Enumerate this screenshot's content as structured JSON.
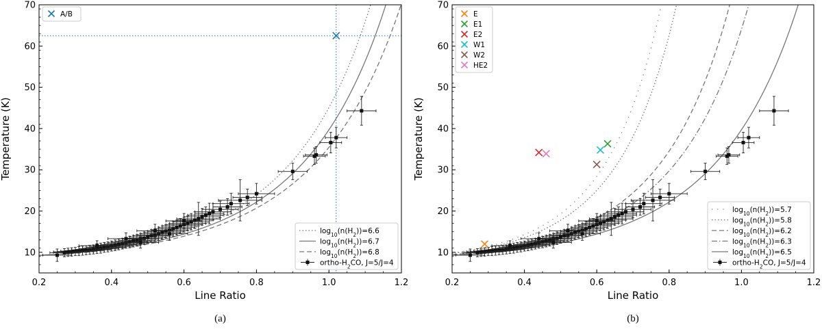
{
  "chart_data": [
    {
      "type": "scatter",
      "panel_label": "(a)",
      "xlabel": "Line Ratio",
      "ylabel": "Temperature (K)",
      "xlim": [
        0.2,
        1.2
      ],
      "ylim": [
        5,
        70
      ],
      "xticks": [
        0.2,
        0.4,
        0.6,
        0.8,
        1.0,
        1.2
      ],
      "yticks": [
        10,
        20,
        30,
        40,
        50,
        60,
        70
      ],
      "xtick_labels": [
        "0.2",
        "0.4",
        "0.6",
        "0.8",
        "1.0",
        "1.2"
      ],
      "ytick_labels": [
        "10",
        "20",
        "30",
        "40",
        "50",
        "60",
        "70"
      ],
      "grid": false,
      "model_curves": [
        {
          "name": "log10(n(H2))=6.6",
          "label_pre": "log",
          "label_sub": "10",
          "label_mid": "(n(H",
          "label_sub2": "2",
          "label_post": "))=6.6",
          "style": "dotted",
          "color": "#777777",
          "scale": 1.06
        },
        {
          "name": "log10(n(H2))=6.7",
          "label_pre": "log",
          "label_sub": "10",
          "label_mid": "(n(H",
          "label_sub2": "2",
          "label_post": "))=6.7",
          "style": "solid",
          "color": "#777777",
          "scale": 1.1
        },
        {
          "name": "log10(n(H2))=6.8",
          "label_pre": "log",
          "label_sub": "10",
          "label_mid": "(n(H",
          "label_sub2": "2",
          "label_post": "))=6.8",
          "style": "dashed",
          "color": "#777777",
          "scale": 1.14
        }
      ],
      "markers": [
        {
          "name": "A/B",
          "x": 1.02,
          "y": 62.5,
          "color": "#1f77b4"
        }
      ],
      "reference_lines": {
        "x": 1.02,
        "y": 62.5,
        "color": "#1f77b4"
      },
      "data_series": {
        "name": "ortho-H2CO, J=5/J=4",
        "label_pre": "ortho-H",
        "label_sub": "2",
        "label_post": "CO, J=5/J=4",
        "points": [
          {
            "x": 1.09,
            "y": 44.3,
            "xerr": 0.04,
            "yerr": 3.5
          },
          {
            "x": 1.02,
            "y": 37.8,
            "xerr": 0.03,
            "yerr": 2.5
          },
          {
            "x": 1.005,
            "y": 36.6,
            "xerr": 0.03,
            "yerr": 2.5
          },
          {
            "x": 0.965,
            "y": 33.6,
            "xerr": 0.03,
            "yerr": 2.0
          },
          {
            "x": 0.96,
            "y": 33.3,
            "xerr": 0.03,
            "yerr": 2.0
          },
          {
            "x": 0.9,
            "y": 29.6,
            "xerr": 0.04,
            "yerr": 2.0
          },
          {
            "x": 0.8,
            "y": 24.2,
            "xerr": 0.05,
            "yerr": 2.5
          },
          {
            "x": 0.775,
            "y": 23.3,
            "xerr": 0.04,
            "yerr": 2.0
          },
          {
            "x": 0.755,
            "y": 22.6,
            "xerr": 0.06,
            "yerr": 5.0
          },
          {
            "x": 0.73,
            "y": 21.8,
            "xerr": 0.05,
            "yerr": 2.5
          },
          {
            "x": 0.72,
            "y": 21.0,
            "xerr": 0.04,
            "yerr": 2.0
          },
          {
            "x": 0.7,
            "y": 20.4,
            "xerr": 0.05,
            "yerr": 2.0
          },
          {
            "x": 0.68,
            "y": 19.8,
            "xerr": 0.05,
            "yerr": 2.0
          },
          {
            "x": 0.67,
            "y": 19.4,
            "xerr": 0.04,
            "yerr": 2.5
          },
          {
            "x": 0.66,
            "y": 19.0,
            "xerr": 0.05,
            "yerr": 2.0
          },
          {
            "x": 0.65,
            "y": 18.6,
            "xerr": 0.05,
            "yerr": 2.0
          },
          {
            "x": 0.64,
            "y": 18.1,
            "xerr": 0.06,
            "yerr": 4.0
          },
          {
            "x": 0.63,
            "y": 17.8,
            "xerr": 0.05,
            "yerr": 2.0
          },
          {
            "x": 0.62,
            "y": 17.4,
            "xerr": 0.05,
            "yerr": 2.0
          },
          {
            "x": 0.61,
            "y": 17.0,
            "xerr": 0.05,
            "yerr": 1.8
          },
          {
            "x": 0.6,
            "y": 16.7,
            "xerr": 0.05,
            "yerr": 1.8
          },
          {
            "x": 0.59,
            "y": 16.4,
            "xerr": 0.05,
            "yerr": 1.8
          },
          {
            "x": 0.58,
            "y": 16.0,
            "xerr": 0.05,
            "yerr": 1.8
          },
          {
            "x": 0.57,
            "y": 15.7,
            "xerr": 0.05,
            "yerr": 1.8
          },
          {
            "x": 0.56,
            "y": 15.4,
            "xerr": 0.05,
            "yerr": 1.6
          },
          {
            "x": 0.55,
            "y": 15.1,
            "xerr": 0.05,
            "yerr": 1.6
          },
          {
            "x": 0.54,
            "y": 14.8,
            "xerr": 0.05,
            "yerr": 1.6
          },
          {
            "x": 0.53,
            "y": 14.5,
            "xerr": 0.05,
            "yerr": 1.6
          },
          {
            "x": 0.52,
            "y": 14.2,
            "xerr": 0.05,
            "yerr": 1.5
          },
          {
            "x": 0.51,
            "y": 14.0,
            "xerr": 0.05,
            "yerr": 1.5
          },
          {
            "x": 0.5,
            "y": 13.7,
            "xerr": 0.05,
            "yerr": 1.5
          },
          {
            "x": 0.49,
            "y": 13.4,
            "xerr": 0.05,
            "yerr": 1.5
          },
          {
            "x": 0.48,
            "y": 13.2,
            "xerr": 0.05,
            "yerr": 1.4
          },
          {
            "x": 0.47,
            "y": 12.9,
            "xerr": 0.05,
            "yerr": 1.4
          },
          {
            "x": 0.46,
            "y": 12.7,
            "xerr": 0.05,
            "yerr": 1.4
          },
          {
            "x": 0.45,
            "y": 12.5,
            "xerr": 0.05,
            "yerr": 1.4
          },
          {
            "x": 0.44,
            "y": 12.3,
            "xerr": 0.05,
            "yerr": 1.3
          },
          {
            "x": 0.43,
            "y": 12.1,
            "xerr": 0.05,
            "yerr": 1.3
          },
          {
            "x": 0.42,
            "y": 11.9,
            "xerr": 0.05,
            "yerr": 1.3
          },
          {
            "x": 0.41,
            "y": 11.7,
            "xerr": 0.05,
            "yerr": 1.3
          },
          {
            "x": 0.4,
            "y": 11.5,
            "xerr": 0.05,
            "yerr": 1.2
          },
          {
            "x": 0.39,
            "y": 11.3,
            "xerr": 0.05,
            "yerr": 1.2
          },
          {
            "x": 0.38,
            "y": 11.2,
            "xerr": 0.05,
            "yerr": 1.2
          },
          {
            "x": 0.37,
            "y": 11.0,
            "xerr": 0.05,
            "yerr": 1.2
          },
          {
            "x": 0.36,
            "y": 10.9,
            "xerr": 0.05,
            "yerr": 1.2
          },
          {
            "x": 0.35,
            "y": 10.7,
            "xerr": 0.05,
            "yerr": 1.1
          },
          {
            "x": 0.34,
            "y": 10.6,
            "xerr": 0.05,
            "yerr": 1.1
          },
          {
            "x": 0.33,
            "y": 10.5,
            "xerr": 0.05,
            "yerr": 1.1
          },
          {
            "x": 0.32,
            "y": 10.4,
            "xerr": 0.05,
            "yerr": 1.1
          },
          {
            "x": 0.31,
            "y": 10.3,
            "xerr": 0.05,
            "yerr": 1.1
          },
          {
            "x": 0.3,
            "y": 10.2,
            "xerr": 0.05,
            "yerr": 1.0
          },
          {
            "x": 0.29,
            "y": 10.1,
            "xerr": 0.05,
            "yerr": 1.0
          },
          {
            "x": 0.28,
            "y": 10.0,
            "xerr": 0.04,
            "yerr": 1.0
          },
          {
            "x": 0.27,
            "y": 9.9,
            "xerr": 0.04,
            "yerr": 1.0
          },
          {
            "x": 0.25,
            "y": 9.3,
            "xerr": 0.04,
            "yerr": 1.5
          },
          {
            "x": 0.44,
            "y": 13.3,
            "xerr": 0.05,
            "yerr": 1.4
          },
          {
            "x": 0.52,
            "y": 15.2,
            "xerr": 0.05,
            "yerr": 1.6
          },
          {
            "x": 0.6,
            "y": 17.6,
            "xerr": 0.05,
            "yerr": 1.8
          },
          {
            "x": 0.36,
            "y": 11.6,
            "xerr": 0.05,
            "yerr": 1.2
          },
          {
            "x": 0.48,
            "y": 12.4,
            "xerr": 0.05,
            "yerr": 1.4
          },
          {
            "x": 0.56,
            "y": 14.5,
            "xerr": 0.05,
            "yerr": 1.6
          }
        ]
      }
    },
    {
      "type": "scatter",
      "panel_label": "(b)",
      "xlabel": "Line Ratio",
      "ylabel": "Temperature (K)",
      "xlim": [
        0.2,
        1.2
      ],
      "ylim": [
        5,
        70
      ],
      "xticks": [
        0.2,
        0.4,
        0.6,
        0.8,
        1.0,
        1.2
      ],
      "yticks": [
        10,
        20,
        30,
        40,
        50,
        60,
        70
      ],
      "xtick_labels": [
        "0.2",
        "0.4",
        "0.6",
        "0.8",
        "1.0",
        "1.2"
      ],
      "ytick_labels": [
        "10",
        "20",
        "30",
        "40",
        "50",
        "60",
        "70"
      ],
      "grid": false,
      "model_curves": [
        {
          "name": "log10(n(H2))=5.7",
          "label_pre": "log",
          "label_sub": "10",
          "label_mid": "(n(H",
          "label_sub2": "2",
          "label_post": "))=5.7",
          "style": "sparse-dotted",
          "color": "#777777",
          "scale": 0.74
        },
        {
          "name": "log10(n(H2))=5.8",
          "label_pre": "log",
          "label_sub": "10",
          "label_mid": "(n(H",
          "label_sub2": "2",
          "label_post": "))=5.8",
          "style": "dotted",
          "color": "#777777",
          "scale": 0.78
        },
        {
          "name": "log10(n(H2))=6.2",
          "label_pre": "log",
          "label_sub": "10",
          "label_mid": "(n(H",
          "label_sub2": "2",
          "label_post": "))=6.2",
          "style": "dashed",
          "color": "#777777",
          "scale": 0.92
        },
        {
          "name": "log10(n(H2))=6.3",
          "label_pre": "log",
          "label_sub": "10",
          "label_mid": "(n(H",
          "label_sub2": "2",
          "label_post": "))=6.3",
          "style": "dashdot",
          "color": "#777777",
          "scale": 0.97
        },
        {
          "name": "log10(n(H2))=6.5",
          "label_pre": "log",
          "label_sub": "10",
          "label_mid": "(n(H",
          "label_sub2": "2",
          "label_post": "))=6.5",
          "style": "solid",
          "color": "#777777",
          "scale": 1.1
        }
      ],
      "markers": [
        {
          "name": "E",
          "x": 0.29,
          "y": 12.0,
          "color": "#ff7f0e"
        },
        {
          "name": "E1",
          "x": 0.63,
          "y": 36.3,
          "color": "#2ca02c"
        },
        {
          "name": "E2",
          "x": 0.44,
          "y": 34.2,
          "color": "#d62728"
        },
        {
          "name": "W1",
          "x": 0.61,
          "y": 34.8,
          "color": "#17becf"
        },
        {
          "name": "W2",
          "x": 0.6,
          "y": 31.3,
          "color": "#8c564b"
        },
        {
          "name": "HE2",
          "x": 0.46,
          "y": 33.9,
          "color": "#e377c2"
        }
      ],
      "data_series": {
        "name": "ortho-H2CO, J=5/J=4",
        "label_pre": "ortho-H",
        "label_sub": "2",
        "label_post": "CO, J=5/J=4",
        "points": [
          {
            "x": 1.09,
            "y": 44.3,
            "xerr": 0.04,
            "yerr": 3.5
          },
          {
            "x": 1.02,
            "y": 37.8,
            "xerr": 0.03,
            "yerr": 2.5
          },
          {
            "x": 1.005,
            "y": 36.6,
            "xerr": 0.03,
            "yerr": 2.5
          },
          {
            "x": 0.965,
            "y": 33.6,
            "xerr": 0.03,
            "yerr": 2.0
          },
          {
            "x": 0.96,
            "y": 33.3,
            "xerr": 0.03,
            "yerr": 2.0
          },
          {
            "x": 0.9,
            "y": 29.6,
            "xerr": 0.04,
            "yerr": 2.0
          },
          {
            "x": 0.8,
            "y": 24.2,
            "xerr": 0.05,
            "yerr": 2.5
          },
          {
            "x": 0.775,
            "y": 23.3,
            "xerr": 0.04,
            "yerr": 2.0
          },
          {
            "x": 0.755,
            "y": 22.6,
            "xerr": 0.06,
            "yerr": 5.0
          },
          {
            "x": 0.73,
            "y": 21.8,
            "xerr": 0.05,
            "yerr": 2.5
          },
          {
            "x": 0.72,
            "y": 21.0,
            "xerr": 0.04,
            "yerr": 2.0
          },
          {
            "x": 0.7,
            "y": 20.4,
            "xerr": 0.05,
            "yerr": 2.0
          },
          {
            "x": 0.68,
            "y": 19.8,
            "xerr": 0.05,
            "yerr": 2.0
          },
          {
            "x": 0.67,
            "y": 19.4,
            "xerr": 0.04,
            "yerr": 2.5
          },
          {
            "x": 0.66,
            "y": 19.0,
            "xerr": 0.05,
            "yerr": 2.0
          },
          {
            "x": 0.65,
            "y": 18.6,
            "xerr": 0.05,
            "yerr": 2.0
          },
          {
            "x": 0.64,
            "y": 18.1,
            "xerr": 0.06,
            "yerr": 4.0
          },
          {
            "x": 0.63,
            "y": 17.8,
            "xerr": 0.05,
            "yerr": 2.0
          },
          {
            "x": 0.62,
            "y": 17.4,
            "xerr": 0.05,
            "yerr": 2.0
          },
          {
            "x": 0.61,
            "y": 17.0,
            "xerr": 0.05,
            "yerr": 1.8
          },
          {
            "x": 0.6,
            "y": 16.7,
            "xerr": 0.05,
            "yerr": 1.8
          },
          {
            "x": 0.59,
            "y": 16.4,
            "xerr": 0.05,
            "yerr": 1.8
          },
          {
            "x": 0.58,
            "y": 16.0,
            "xerr": 0.05,
            "yerr": 1.8
          },
          {
            "x": 0.57,
            "y": 15.7,
            "xerr": 0.05,
            "yerr": 1.8
          },
          {
            "x": 0.56,
            "y": 15.4,
            "xerr": 0.05,
            "yerr": 1.6
          },
          {
            "x": 0.55,
            "y": 15.1,
            "xerr": 0.05,
            "yerr": 1.6
          },
          {
            "x": 0.54,
            "y": 14.8,
            "xerr": 0.05,
            "yerr": 1.6
          },
          {
            "x": 0.53,
            "y": 14.5,
            "xerr": 0.05,
            "yerr": 1.6
          },
          {
            "x": 0.52,
            "y": 14.2,
            "xerr": 0.05,
            "yerr": 1.5
          },
          {
            "x": 0.51,
            "y": 14.0,
            "xerr": 0.05,
            "yerr": 1.5
          },
          {
            "x": 0.5,
            "y": 13.7,
            "xerr": 0.05,
            "yerr": 1.5
          },
          {
            "x": 0.49,
            "y": 13.4,
            "xerr": 0.05,
            "yerr": 1.5
          },
          {
            "x": 0.48,
            "y": 13.2,
            "xerr": 0.05,
            "yerr": 1.4
          },
          {
            "x": 0.47,
            "y": 12.9,
            "xerr": 0.05,
            "yerr": 1.4
          },
          {
            "x": 0.46,
            "y": 12.7,
            "xerr": 0.05,
            "yerr": 1.4
          },
          {
            "x": 0.45,
            "y": 12.5,
            "xerr": 0.05,
            "yerr": 1.4
          },
          {
            "x": 0.44,
            "y": 12.3,
            "xerr": 0.05,
            "yerr": 1.3
          },
          {
            "x": 0.43,
            "y": 12.1,
            "xerr": 0.05,
            "yerr": 1.3
          },
          {
            "x": 0.42,
            "y": 11.9,
            "xerr": 0.05,
            "yerr": 1.3
          },
          {
            "x": 0.41,
            "y": 11.7,
            "xerr": 0.05,
            "yerr": 1.3
          },
          {
            "x": 0.4,
            "y": 11.5,
            "xerr": 0.05,
            "yerr": 1.2
          },
          {
            "x": 0.39,
            "y": 11.3,
            "xerr": 0.05,
            "yerr": 1.2
          },
          {
            "x": 0.38,
            "y": 11.2,
            "xerr": 0.05,
            "yerr": 1.2
          },
          {
            "x": 0.37,
            "y": 11.0,
            "xerr": 0.05,
            "yerr": 1.2
          },
          {
            "x": 0.36,
            "y": 10.9,
            "xerr": 0.05,
            "yerr": 1.2
          },
          {
            "x": 0.35,
            "y": 10.7,
            "xerr": 0.05,
            "yerr": 1.1
          },
          {
            "x": 0.34,
            "y": 10.6,
            "xerr": 0.05,
            "yerr": 1.1
          },
          {
            "x": 0.33,
            "y": 10.5,
            "xerr": 0.05,
            "yerr": 1.1
          },
          {
            "x": 0.32,
            "y": 10.4,
            "xerr": 0.05,
            "yerr": 1.1
          },
          {
            "x": 0.31,
            "y": 10.3,
            "xerr": 0.05,
            "yerr": 1.1
          },
          {
            "x": 0.3,
            "y": 10.2,
            "xerr": 0.05,
            "yerr": 1.0
          },
          {
            "x": 0.29,
            "y": 10.1,
            "xerr": 0.05,
            "yerr": 1.0
          },
          {
            "x": 0.28,
            "y": 10.0,
            "xerr": 0.04,
            "yerr": 1.0
          },
          {
            "x": 0.27,
            "y": 9.9,
            "xerr": 0.04,
            "yerr": 1.0
          },
          {
            "x": 0.25,
            "y": 9.3,
            "xerr": 0.04,
            "yerr": 1.5
          },
          {
            "x": 0.44,
            "y": 13.3,
            "xerr": 0.05,
            "yerr": 1.4
          },
          {
            "x": 0.52,
            "y": 15.2,
            "xerr": 0.05,
            "yerr": 1.6
          },
          {
            "x": 0.6,
            "y": 17.6,
            "xerr": 0.05,
            "yerr": 1.8
          },
          {
            "x": 0.36,
            "y": 11.6,
            "xerr": 0.05,
            "yerr": 1.2
          },
          {
            "x": 0.48,
            "y": 12.4,
            "xerr": 0.05,
            "yerr": 1.4
          },
          {
            "x": 0.56,
            "y": 14.5,
            "xerr": 0.05,
            "yerr": 1.6
          }
        ]
      }
    }
  ]
}
